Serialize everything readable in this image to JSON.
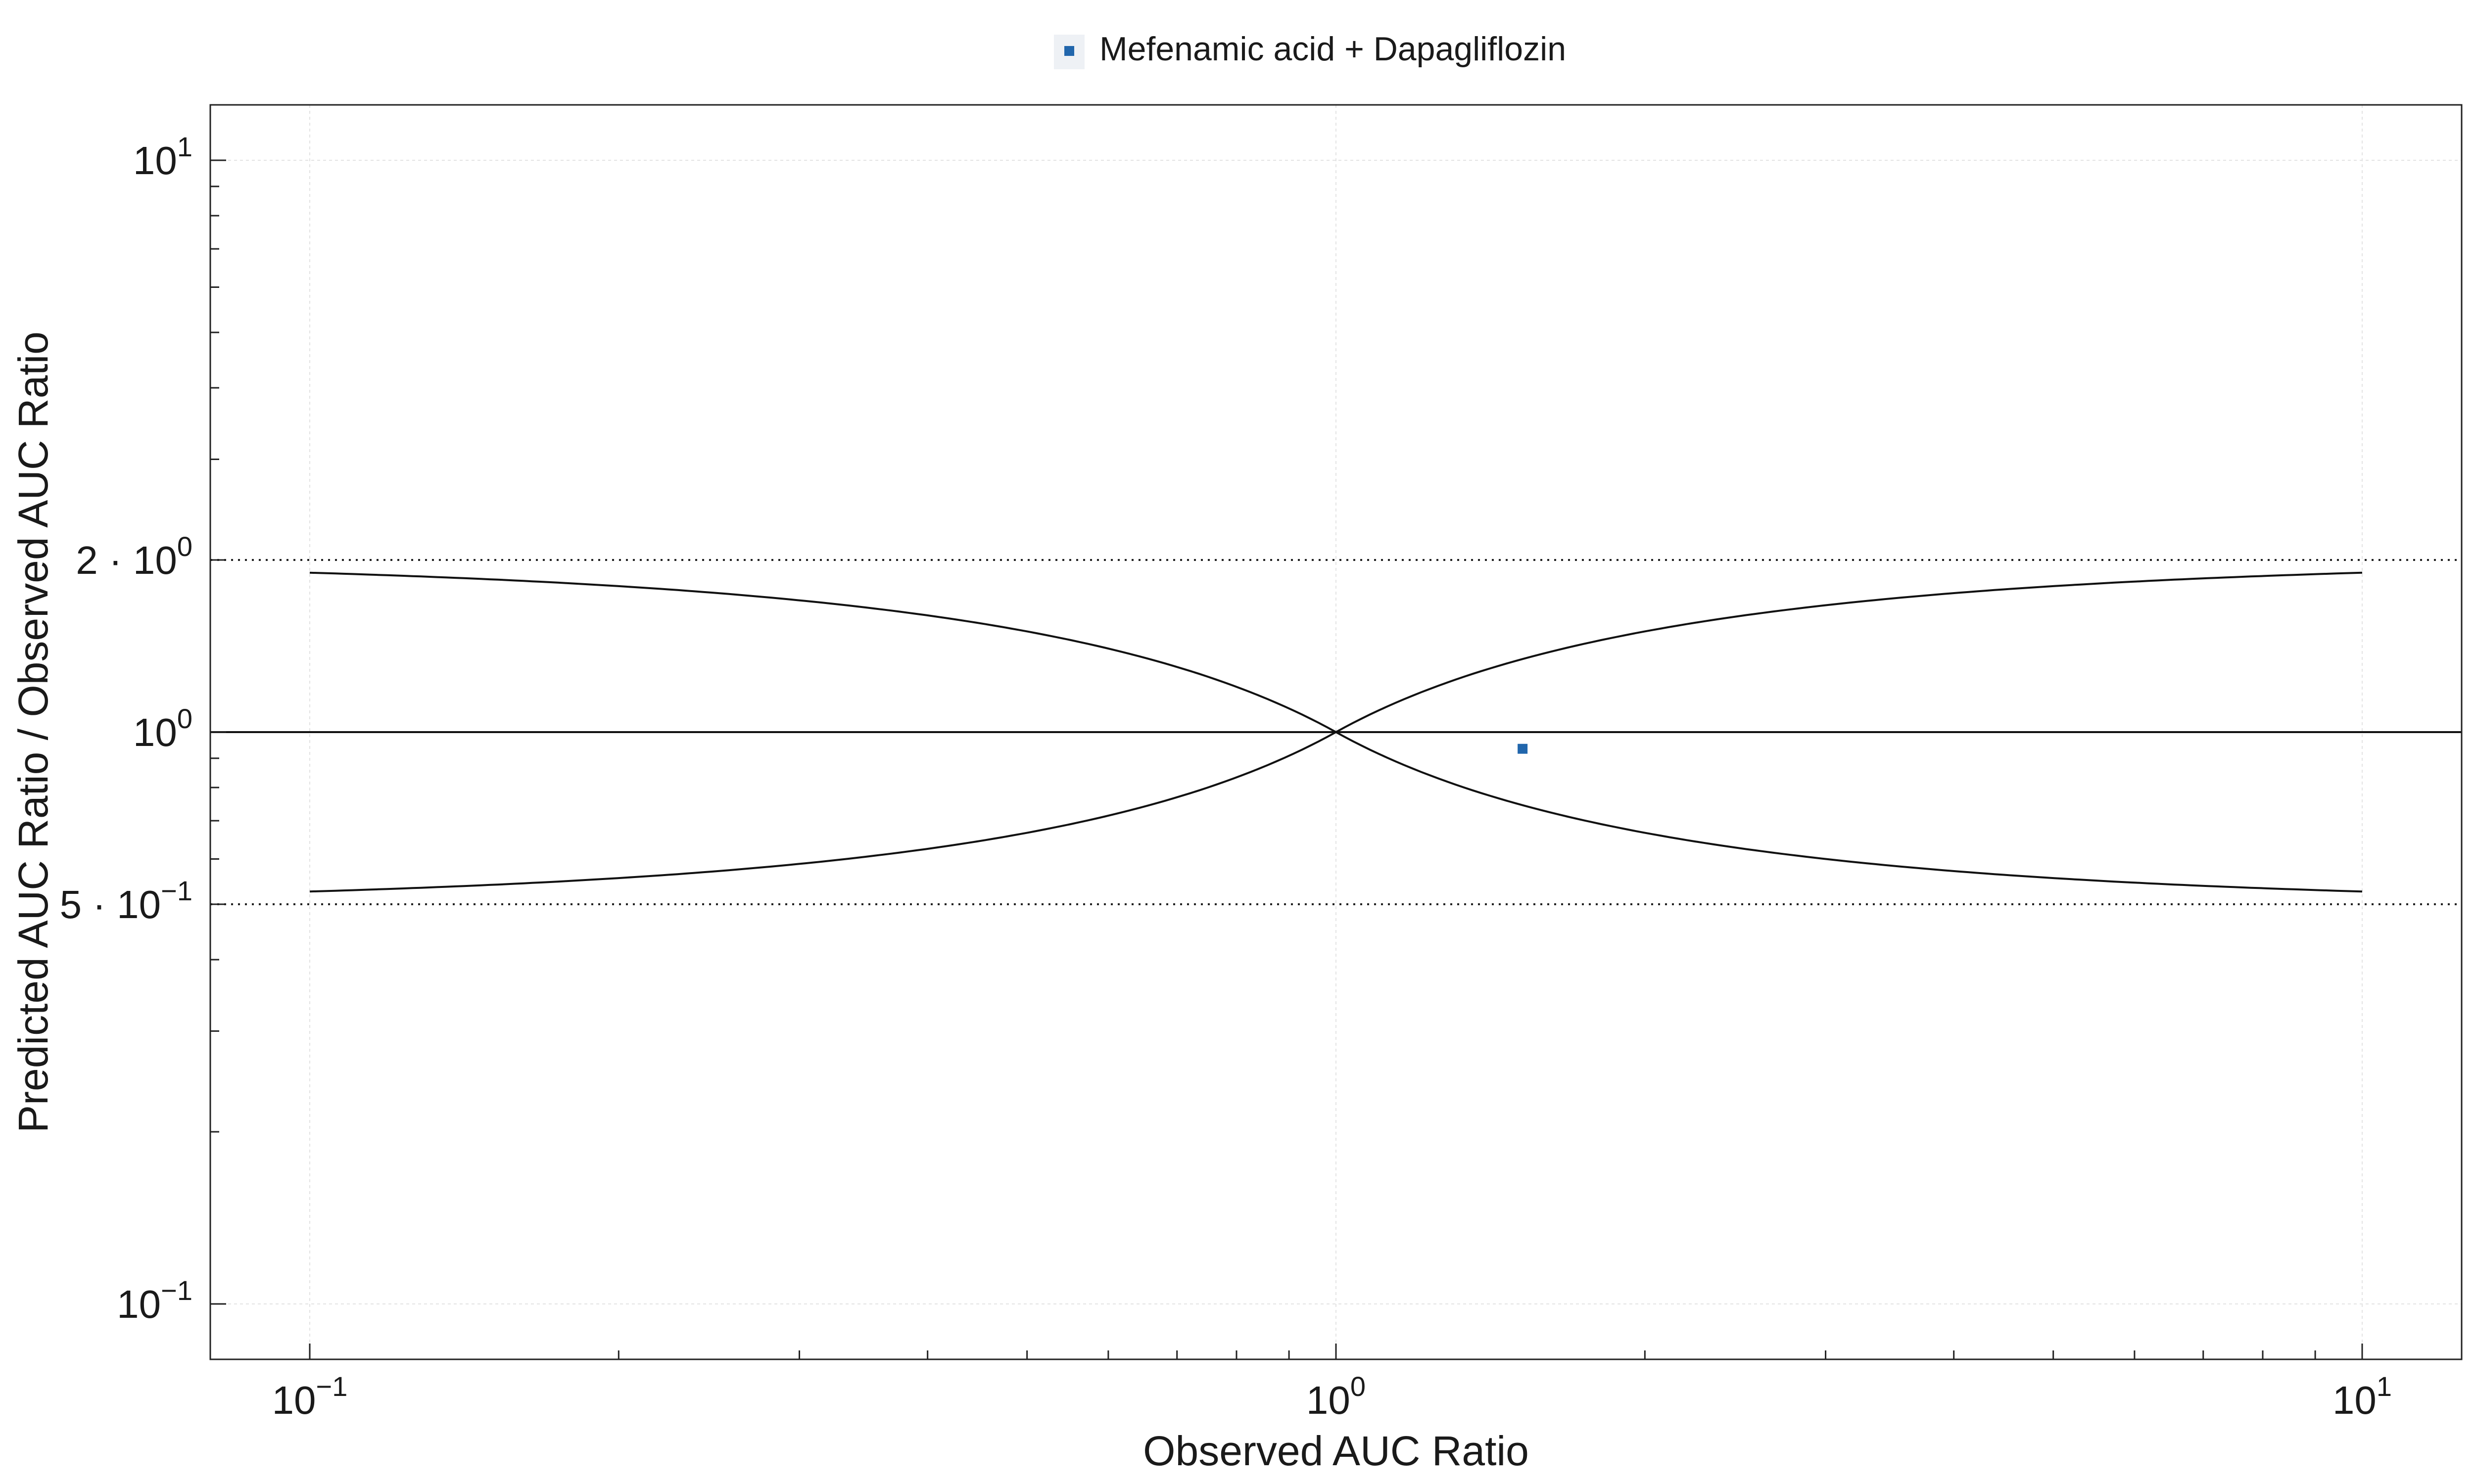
{
  "chart_data": {
    "type": "scatter",
    "xlabel": "Observed AUC Ratio",
    "ylabel": "Predicted AUC Ratio / Observed AUC Ratio",
    "xscale": "log",
    "yscale": "log",
    "xlim": [
      0.08,
      12.5
    ],
    "ylim": [
      0.08,
      12.5
    ],
    "grid": true,
    "legend_position": "top-center",
    "x_ticks": [
      {
        "value": 0.1,
        "base": "10",
        "exp": "−1"
      },
      {
        "value": 1,
        "base": "10",
        "exp": "0"
      },
      {
        "value": 10,
        "base": "10",
        "exp": "1"
      }
    ],
    "y_ticks": [
      {
        "value": 0.1,
        "base": "10",
        "exp": "−1"
      },
      {
        "value": 0.5,
        "base": "5 · 10",
        "exp": "−1"
      },
      {
        "value": 1,
        "base": "10",
        "exp": "0"
      },
      {
        "value": 2,
        "base": "2 · 10",
        "exp": "0"
      },
      {
        "value": 10,
        "base": "10",
        "exp": "1"
      }
    ],
    "reference_lines": {
      "unity": 1,
      "fold_limits": [
        0.5,
        2
      ],
      "guest_limits_x_range": [
        0.1,
        10
      ]
    },
    "series": [
      {
        "name": "Mefenamic acid + Dapagliflozin",
        "color": "#2166ac",
        "marker": "square",
        "points": [
          {
            "x": 1.52,
            "y": 0.935
          }
        ]
      }
    ]
  }
}
